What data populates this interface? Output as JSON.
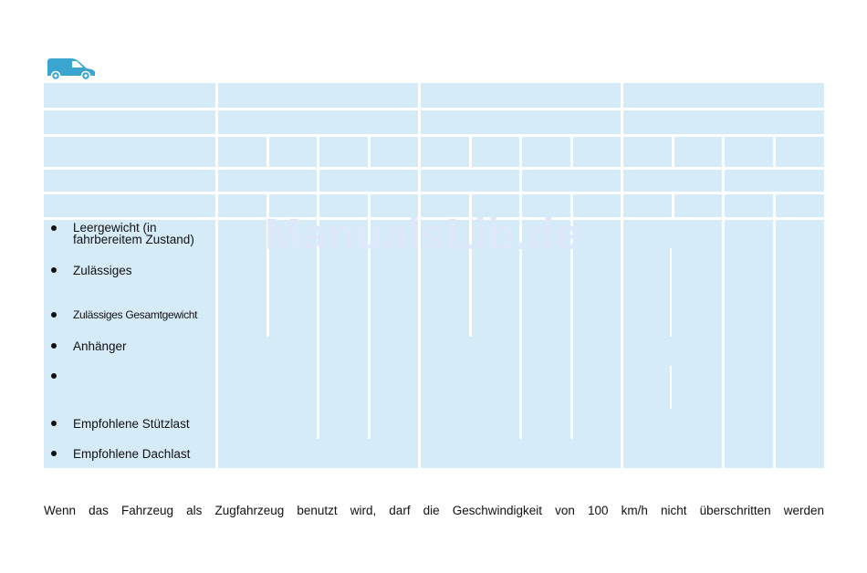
{
  "icon": {
    "name": "van-icon",
    "color": "#3aa6cf"
  },
  "table": {
    "fill_color": "#d6ebf8",
    "rows": [
      {
        "bullet": true,
        "label": "Leergewicht (in fahrbereitem Zustand)"
      },
      {
        "bullet": true,
        "label": "Zulässiges"
      },
      {
        "bullet": true,
        "label": "Zulässiges Gesamtgewicht"
      },
      {
        "bullet": true,
        "label": "Anhänger"
      },
      {
        "bullet": true,
        "label": ""
      },
      {
        "bullet": true,
        "label": "Empfohlene Stützlast"
      },
      {
        "bullet": true,
        "label": "Empfohlene Dachlast"
      }
    ]
  },
  "watermark": "ManualsLib.de",
  "footer_text": "Wenn das Fahrzeug als Zugfahrzeug benutzt wird, darf die Geschwindigkeit von 100 km/h nicht überschritten werden"
}
